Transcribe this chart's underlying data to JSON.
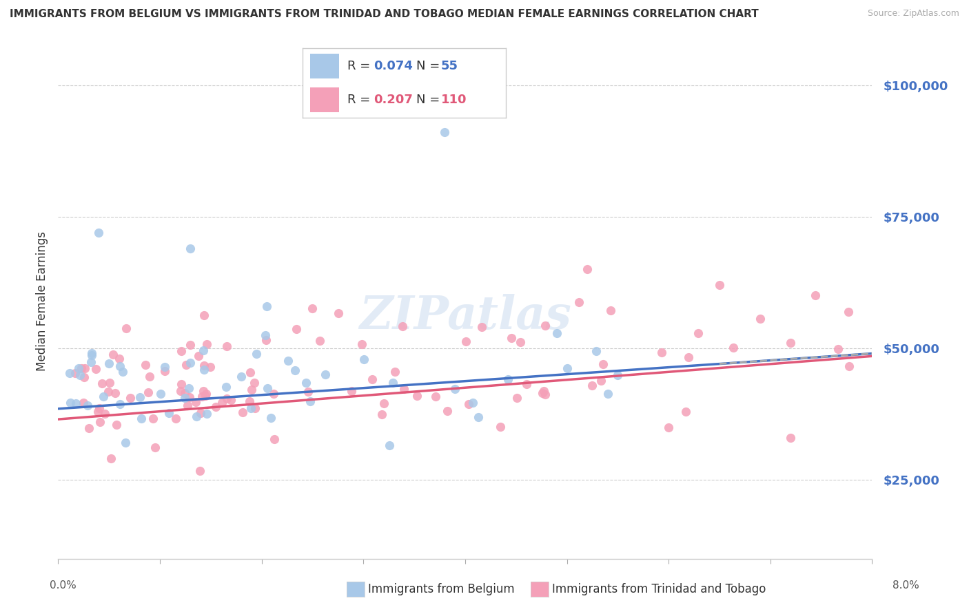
{
  "title": "IMMIGRANTS FROM BELGIUM VS IMMIGRANTS FROM TRINIDAD AND TOBAGO MEDIAN FEMALE EARNINGS CORRELATION CHART",
  "source": "Source: ZipAtlas.com",
  "ylabel": "Median Female Earnings",
  "ytick_labels": [
    "$25,000",
    "$50,000",
    "$75,000",
    "$100,000"
  ],
  "ytick_values": [
    25000,
    50000,
    75000,
    100000
  ],
  "ymin": 10000,
  "ymax": 108000,
  "xmin": 0.0,
  "xmax": 0.08,
  "belgium_color": "#a8c8e8",
  "tt_color": "#f4a0b8",
  "belgium_line_color": "#4472c4",
  "tt_line_color": "#e05878",
  "belgium_R": 0.074,
  "belgium_N": 55,
  "tt_R": 0.207,
  "tt_N": 110,
  "watermark": "ZIPatlas",
  "legend_label_belgium": "Immigrants from Belgium",
  "legend_label_tt": "Immigrants from Trinidad and Tobago",
  "title_fontsize": 11,
  "axis_label_color": "#4472c4",
  "rvalue_color_blue": "#4472c4",
  "rvalue_color_pink": "#e05878"
}
